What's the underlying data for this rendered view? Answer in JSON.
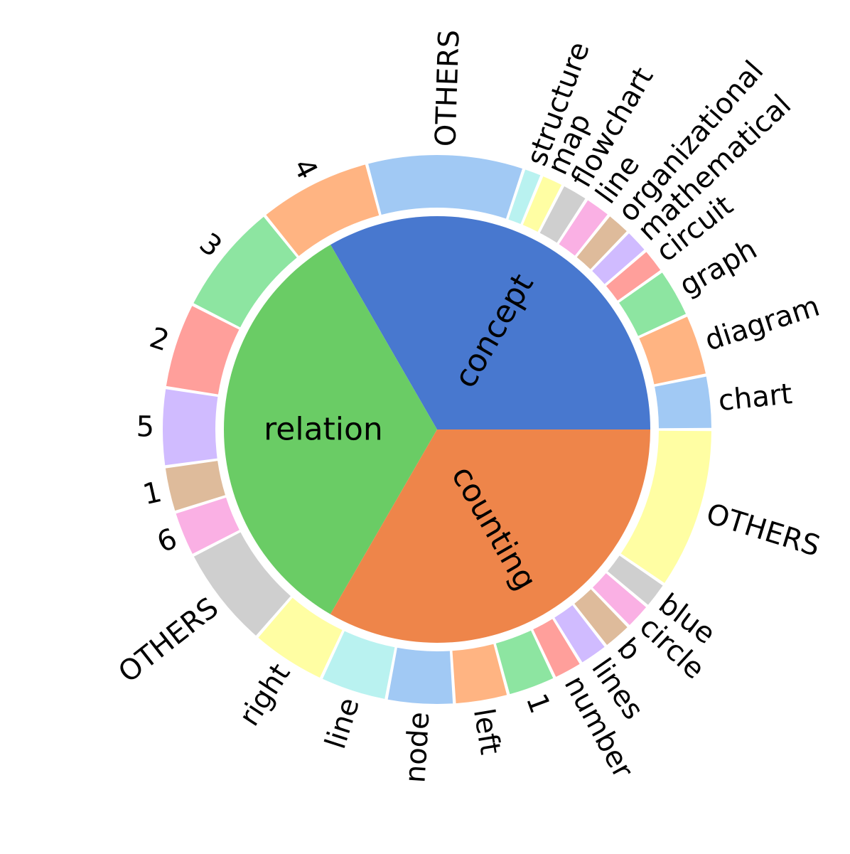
{
  "chart_data": {
    "type": "pie",
    "title": "",
    "inner": {
      "categories": [
        "concept",
        "relation",
        "counting"
      ],
      "values": [
        0.3333,
        0.3333,
        0.3334
      ],
      "colors": [
        "#4878cf",
        "#6acc65",
        "#ee854a"
      ]
    },
    "outer": [
      {
        "group": "concept",
        "items": [
          {
            "label": "chart",
            "value": 0.02,
            "color": "#a1c9f4"
          },
          {
            "label": "diagram",
            "value": 0.023,
            "color": "#ffb482"
          },
          {
            "label": "graph",
            "value": 0.0185,
            "color": "#8de5a1"
          },
          {
            "label": "circuit",
            "value": 0.0095,
            "color": "#ff9f9b"
          },
          {
            "label": "mathematical",
            "value": 0.0093,
            "color": "#d0bbff"
          },
          {
            "label": "organizational",
            "value": 0.0093,
            "color": "#debb9b"
          },
          {
            "label": "line",
            "value": 0.01,
            "color": "#fab0e4"
          },
          {
            "label": "flowchart",
            "value": 0.01,
            "color": "#cfcfcf"
          },
          {
            "label": "map",
            "value": 0.0085,
            "color": "#fffea3"
          },
          {
            "label": "structure",
            "value": 0.007,
            "color": "#b9f2f0"
          },
          {
            "label": "OTHERS",
            "value": 0.0582,
            "color": "#a1c9f4"
          },
          {
            "label": "4",
            "value": 0.042,
            "color": "#ffb482"
          },
          {
            "label": "3",
            "value": 0.042,
            "color": "#8de5a1"
          }
        ]
      },
      {
        "group": "counting",
        "items": [
          {
            "label": "2",
            "value": 0.032,
            "color": "#ff9f9b"
          },
          {
            "label": "5",
            "value": 0.029,
            "color": "#d0bbff"
          },
          {
            "label": "1",
            "value": 0.017,
            "color": "#debb9b"
          },
          {
            "label": "6",
            "value": 0.017,
            "color": "#fab0e4"
          },
          {
            "label": "OTHERS",
            "value": 0.038,
            "color": "#cfcfcf"
          }
        ]
      },
      {
        "group": "relation",
        "items": [
          {
            "label": "right",
            "value": 0.028,
            "color": "#fffea3"
          },
          {
            "label": "line",
            "value": 0.025,
            "color": "#b9f2f0"
          },
          {
            "label": "node",
            "value": 0.025,
            "color": "#a1c9f4"
          },
          {
            "label": "left",
            "value": 0.02,
            "color": "#ffb482"
          },
          {
            "label": "1",
            "value": 0.018,
            "color": "#8de5a1"
          },
          {
            "label": "number",
            "value": 0.011,
            "color": "#ff9f9b"
          },
          {
            "label": "lines",
            "value": 0.011,
            "color": "#d0bbff"
          },
          {
            "label": "b",
            "value": 0.011,
            "color": "#debb9b"
          },
          {
            "label": "circle",
            "value": 0.01,
            "color": "#fab0e4"
          },
          {
            "label": "blue",
            "value": 0.01,
            "color": "#cfcfcf"
          },
          {
            "label": "OTHERS",
            "value": 0.06,
            "color": "#fffea3"
          }
        ]
      }
    ]
  }
}
